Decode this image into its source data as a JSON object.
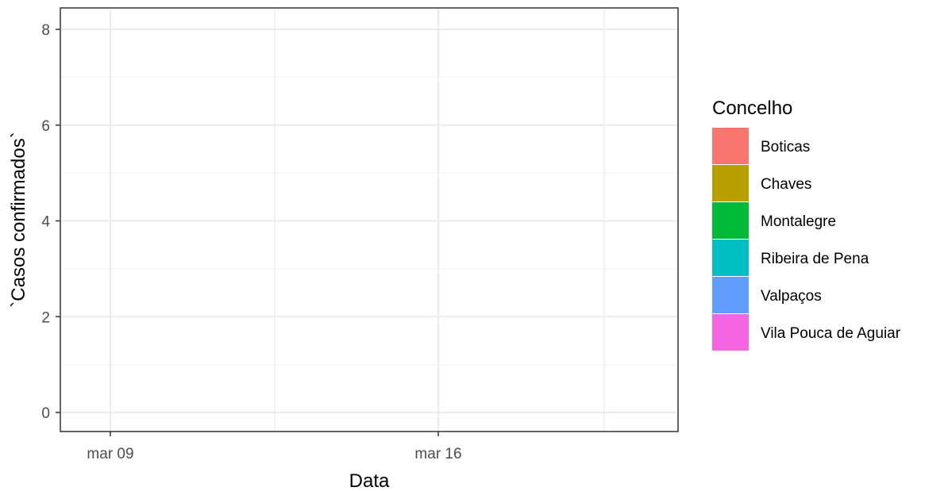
{
  "chart_data": {
    "type": "bar",
    "xlabel": "Data",
    "ylabel": "`Casos confirmados`",
    "x_ticks": [
      "mar 09",
      "mar 16"
    ],
    "y_ticks": [
      0,
      2,
      4,
      6,
      8
    ],
    "ylim": [
      0,
      8
    ],
    "grid": true,
    "legend": {
      "title": "Concelho",
      "position": "right",
      "entries": [
        {
          "label": "Boticas",
          "color": "#F8766D"
        },
        {
          "label": "Chaves",
          "color": "#B79F00"
        },
        {
          "label": "Montalegre",
          "color": "#00BA38"
        },
        {
          "label": "Ribeira de Pena",
          "color": "#00BFC4"
        },
        {
          "label": "Valpaços",
          "color": "#619CFF"
        },
        {
          "label": "Vila Pouca de Aguiar",
          "color": "#F564E3"
        }
      ]
    },
    "series": []
  },
  "colors": {
    "grid_major": "#ebebeb",
    "grid_minor": "#f5f5f5",
    "panel_border": "#333333",
    "tick_text": "#4d4d4d"
  }
}
